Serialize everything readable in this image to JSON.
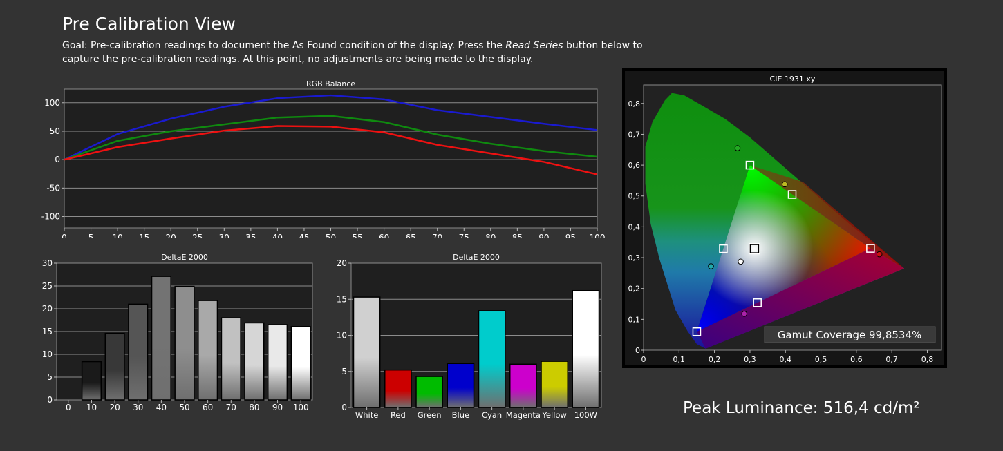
{
  "page": {
    "title": "Pre Calibration View",
    "goal_prefix": "Goal: Pre-calibration readings to document the As Found condition of the display. Press the ",
    "goal_emphasis": "Read Series",
    "goal_suffix": " button below to capture the pre-calibration readings. At this point, no adjustments are being made to the display.",
    "peak_luminance": "Peak Luminance: 516,4 cd/m²"
  },
  "colors": {
    "background": "#333333",
    "plot_bg": "#1f1f1f",
    "red": "#ee1111",
    "green": "#0f8a0f",
    "blue": "#1a1ad0"
  },
  "chart_data": [
    {
      "type": "line",
      "title": "RGB Balance",
      "x": [
        0,
        10,
        20,
        30,
        40,
        50,
        60,
        70,
        80,
        90,
        100
      ],
      "xticks": [
        0,
        5,
        10,
        15,
        20,
        25,
        30,
        35,
        40,
        45,
        50,
        55,
        60,
        65,
        70,
        75,
        80,
        85,
        90,
        95,
        100
      ],
      "yticks": [
        -100,
        -50,
        0,
        50,
        100
      ],
      "xlim": [
        0,
        100
      ],
      "ylim": [
        -120,
        124
      ],
      "grid": true,
      "series": [
        {
          "color": "#1a1ad0",
          "values": [
            0,
            45,
            72,
            93,
            108,
            113,
            106,
            87,
            75,
            63,
            52
          ]
        },
        {
          "color": "#0f8a0f",
          "values": [
            0,
            33,
            50,
            62,
            74,
            77,
            66,
            44,
            28,
            15,
            5
          ]
        },
        {
          "color": "#ee1111",
          "values": [
            0,
            22,
            37,
            51,
            59,
            58,
            48,
            26,
            11,
            -4,
            -26
          ]
        }
      ]
    },
    {
      "type": "bar",
      "title": "DeltaE 2000",
      "categories": [
        "0",
        "10",
        "20",
        "30",
        "40",
        "50",
        "60",
        "70",
        "80",
        "90",
        "100"
      ],
      "values": [
        0,
        8.4,
        14.6,
        21,
        27.1,
        24.9,
        21.8,
        18,
        16.9,
        16.5,
        16.1
      ],
      "colors": [
        "#000000",
        "#1a1a1a",
        "#383838",
        "#555555",
        "#737373",
        "#8e8e8e",
        "#a9a9a9",
        "#c1c1c1",
        "#d6d6d6",
        "#e9e9e9",
        "#ffffff"
      ],
      "yticks": [
        0,
        5,
        10,
        15,
        20,
        25,
        30
      ],
      "ylim": [
        0,
        30
      ],
      "grid": true
    },
    {
      "type": "bar",
      "title": "DeltaE 2000",
      "categories": [
        "White",
        "Red",
        "Green",
        "Blue",
        "Cyan",
        "Magenta",
        "Yellow",
        "100W"
      ],
      "values": [
        15.3,
        5.2,
        4.3,
        6.1,
        13.4,
        6,
        6.4,
        16.2
      ],
      "colors": [
        "#d0d0d0",
        "#cc0000",
        "#00bb00",
        "#0000cc",
        "#00cccc",
        "#cc00cc",
        "#cccc00",
        "#ffffff"
      ],
      "yticks": [
        0,
        5,
        10,
        15,
        20
      ],
      "ylim": [
        0,
        20
      ],
      "grid": true
    },
    {
      "type": "scatter",
      "title": "CIE 1931 xy",
      "xticks": [
        "0",
        "0,1",
        "0,2",
        "0,3",
        "0,4",
        "0,5",
        "0,6",
        "0,7",
        "0,8"
      ],
      "yticks": [
        "0",
        "0,1",
        "0,2",
        "0,3",
        "0,4",
        "0,5",
        "0,6",
        "0,7",
        "0,8"
      ],
      "xlim": [
        0,
        0.84
      ],
      "ylim": [
        0,
        0.86
      ],
      "gamut_targets": [
        [
          0.64,
          0.33
        ],
        [
          0.3,
          0.6
        ],
        [
          0.15,
          0.06
        ]
      ],
      "target_markers": [
        [
          0.64,
          0.33
        ],
        [
          0.3,
          0.6
        ],
        [
          0.15,
          0.06
        ],
        [
          0.225,
          0.329
        ],
        [
          0.321,
          0.154
        ],
        [
          0.419,
          0.505
        ],
        [
          0.3127,
          0.329
        ]
      ],
      "measured_points": [
        {
          "x": 0.665,
          "y": 0.311,
          "color": "#cc1111"
        },
        {
          "x": 0.265,
          "y": 0.655,
          "color": "#22aa22"
        },
        {
          "x": 0.398,
          "y": 0.538,
          "color": "#bbbb22"
        },
        {
          "x": 0.19,
          "y": 0.272,
          "color": "#22aaaa"
        },
        {
          "x": 0.284,
          "y": 0.118,
          "color": "#aa22aa"
        },
        {
          "x": 0.274,
          "y": 0.287,
          "color": "#ffffff"
        }
      ],
      "annotation": "Gamut Coverage 99,8534%"
    }
  ]
}
